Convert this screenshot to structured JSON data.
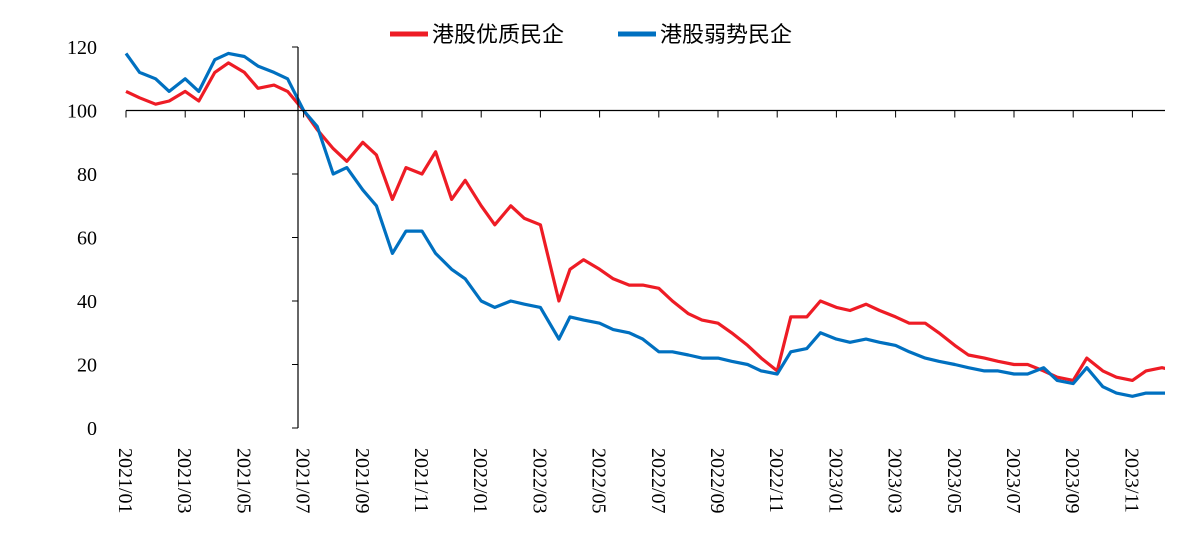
{
  "chart_data": {
    "type": "line",
    "title": "",
    "xlabel": "",
    "ylabel": "",
    "ylim": [
      0,
      120
    ],
    "yticks": [
      0,
      20,
      40,
      60,
      80,
      100,
      120
    ],
    "x_tick_labels": [
      "2021/01",
      "2021/03",
      "2021/05",
      "2021/07",
      "2021/09",
      "2021/11",
      "2022/01",
      "2022/03",
      "2022/05",
      "2022/07",
      "2022/09",
      "2022/11",
      "2023/01",
      "2023/03",
      "2023/05",
      "2023/07",
      "2023/09",
      "2023/11"
    ],
    "baseline": 100,
    "grid": false,
    "legend_position": "top-center",
    "series": [
      {
        "name": "港股优质民企",
        "color": "#ee1c25",
        "points": [
          [
            "2021/01/01",
            106
          ],
          [
            "2021/01/15",
            104
          ],
          [
            "2021/02/01",
            102
          ],
          [
            "2021/02/15",
            103
          ],
          [
            "2021/03/01",
            106
          ],
          [
            "2021/03/15",
            103
          ],
          [
            "2021/04/01",
            112
          ],
          [
            "2021/04/15",
            115
          ],
          [
            "2021/05/01",
            112
          ],
          [
            "2021/05/15",
            107
          ],
          [
            "2021/06/01",
            108
          ],
          [
            "2021/06/15",
            106
          ],
          [
            "2021/07/01",
            100
          ],
          [
            "2021/07/15",
            94
          ],
          [
            "2021/08/01",
            88
          ],
          [
            "2021/08/15",
            84
          ],
          [
            "2021/09/01",
            90
          ],
          [
            "2021/09/15",
            86
          ],
          [
            "2021/10/01",
            72
          ],
          [
            "2021/10/15",
            82
          ],
          [
            "2021/11/01",
            80
          ],
          [
            "2021/11/15",
            87
          ],
          [
            "2021/12/01",
            72
          ],
          [
            "2021/12/15",
            78
          ],
          [
            "2022/01/01",
            70
          ],
          [
            "2022/01/15",
            64
          ],
          [
            "2022/02/01",
            70
          ],
          [
            "2022/02/15",
            66
          ],
          [
            "2022/03/01",
            64
          ],
          [
            "2022/03/20",
            40
          ],
          [
            "2022/04/01",
            50
          ],
          [
            "2022/04/15",
            53
          ],
          [
            "2022/05/01",
            50
          ],
          [
            "2022/05/15",
            47
          ],
          [
            "2022/06/01",
            45
          ],
          [
            "2022/06/15",
            45
          ],
          [
            "2022/07/01",
            44
          ],
          [
            "2022/07/15",
            40
          ],
          [
            "2022/08/01",
            36
          ],
          [
            "2022/08/15",
            34
          ],
          [
            "2022/09/01",
            33
          ],
          [
            "2022/09/15",
            30
          ],
          [
            "2022/10/01",
            26
          ],
          [
            "2022/10/15",
            22
          ],
          [
            "2022/11/01",
            18
          ],
          [
            "2022/11/15",
            35
          ],
          [
            "2022/12/01",
            35
          ],
          [
            "2022/12/15",
            40
          ],
          [
            "2023/01/01",
            38
          ],
          [
            "2023/01/15",
            37
          ],
          [
            "2023/02/01",
            39
          ],
          [
            "2023/02/15",
            37
          ],
          [
            "2023/03/01",
            35
          ],
          [
            "2023/03/15",
            33
          ],
          [
            "2023/04/01",
            33
          ],
          [
            "2023/04/15",
            30
          ],
          [
            "2023/05/01",
            26
          ],
          [
            "2023/05/15",
            23
          ],
          [
            "2023/06/01",
            22
          ],
          [
            "2023/06/15",
            21
          ],
          [
            "2023/07/01",
            20
          ],
          [
            "2023/07/15",
            20
          ],
          [
            "2023/08/01",
            18
          ],
          [
            "2023/08/15",
            16
          ],
          [
            "2023/09/01",
            15
          ],
          [
            "2023/09/15",
            22
          ],
          [
            "2023/10/01",
            18
          ],
          [
            "2023/10/15",
            16
          ],
          [
            "2023/11/01",
            15
          ],
          [
            "2023/11/15",
            18
          ],
          [
            "2023/12/01",
            19
          ],
          [
            "2023/12/15",
            18
          ]
        ]
      },
      {
        "name": "港股弱势民企",
        "color": "#0070c0",
        "points": [
          [
            "2021/01/01",
            118
          ],
          [
            "2021/01/15",
            112
          ],
          [
            "2021/02/01",
            110
          ],
          [
            "2021/02/15",
            106
          ],
          [
            "2021/03/01",
            110
          ],
          [
            "2021/03/15",
            106
          ],
          [
            "2021/04/01",
            116
          ],
          [
            "2021/04/15",
            118
          ],
          [
            "2021/05/01",
            117
          ],
          [
            "2021/05/15",
            114
          ],
          [
            "2021/06/01",
            112
          ],
          [
            "2021/06/15",
            110
          ],
          [
            "2021/07/01",
            100
          ],
          [
            "2021/07/15",
            95
          ],
          [
            "2021/08/01",
            80
          ],
          [
            "2021/08/15",
            82
          ],
          [
            "2021/09/01",
            75
          ],
          [
            "2021/09/15",
            70
          ],
          [
            "2021/10/01",
            55
          ],
          [
            "2021/10/15",
            62
          ],
          [
            "2021/11/01",
            62
          ],
          [
            "2021/11/15",
            55
          ],
          [
            "2021/12/01",
            50
          ],
          [
            "2021/12/15",
            47
          ],
          [
            "2022/01/01",
            40
          ],
          [
            "2022/01/15",
            38
          ],
          [
            "2022/02/01",
            40
          ],
          [
            "2022/02/15",
            39
          ],
          [
            "2022/03/01",
            38
          ],
          [
            "2022/03/20",
            28
          ],
          [
            "2022/04/01",
            35
          ],
          [
            "2022/04/15",
            34
          ],
          [
            "2022/05/01",
            33
          ],
          [
            "2022/05/15",
            31
          ],
          [
            "2022/06/01",
            30
          ],
          [
            "2022/06/15",
            28
          ],
          [
            "2022/07/01",
            24
          ],
          [
            "2022/07/15",
            24
          ],
          [
            "2022/08/01",
            23
          ],
          [
            "2022/08/15",
            22
          ],
          [
            "2022/09/01",
            22
          ],
          [
            "2022/09/15",
            21
          ],
          [
            "2022/10/01",
            20
          ],
          [
            "2022/10/15",
            18
          ],
          [
            "2022/11/01",
            17
          ],
          [
            "2022/11/15",
            24
          ],
          [
            "2022/12/01",
            25
          ],
          [
            "2022/12/15",
            30
          ],
          [
            "2023/01/01",
            28
          ],
          [
            "2023/01/15",
            27
          ],
          [
            "2023/02/01",
            28
          ],
          [
            "2023/02/15",
            27
          ],
          [
            "2023/03/01",
            26
          ],
          [
            "2023/03/15",
            24
          ],
          [
            "2023/04/01",
            22
          ],
          [
            "2023/04/15",
            21
          ],
          [
            "2023/05/01",
            20
          ],
          [
            "2023/05/15",
            19
          ],
          [
            "2023/06/01",
            18
          ],
          [
            "2023/06/15",
            18
          ],
          [
            "2023/07/01",
            17
          ],
          [
            "2023/07/15",
            17
          ],
          [
            "2023/08/01",
            19
          ],
          [
            "2023/08/15",
            15
          ],
          [
            "2023/09/01",
            14
          ],
          [
            "2023/09/15",
            19
          ],
          [
            "2023/10/01",
            13
          ],
          [
            "2023/10/15",
            11
          ],
          [
            "2023/11/01",
            10
          ],
          [
            "2023/11/15",
            11
          ],
          [
            "2023/12/01",
            11
          ],
          [
            "2023/12/15",
            11
          ]
        ]
      }
    ]
  }
}
